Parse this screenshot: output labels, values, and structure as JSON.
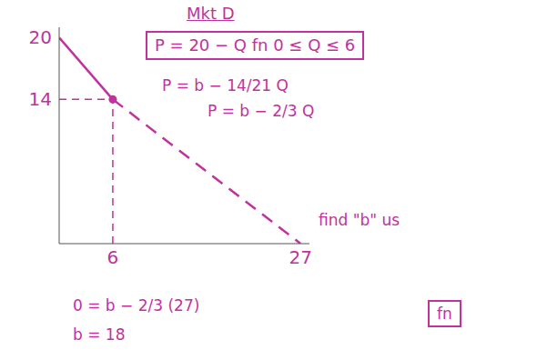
{
  "chart_data": {
    "type": "line",
    "xlim": [
      0,
      28
    ],
    "xticks": [
      6,
      27
    ],
    "ylim": [
      0,
      21
    ],
    "yticks": [
      14,
      20
    ],
    "grid": false,
    "tick_labels": true,
    "color": "#c0329e",
    "series": [
      {
        "type": "line",
        "line_style": "solid",
        "x": [
          0,
          6
        ],
        "values": [
          20,
          14
        ]
      },
      {
        "type": "line",
        "line_style": "dashed",
        "x": [
          6,
          27
        ],
        "values": [
          14,
          0
        ]
      },
      {
        "type": "scatter",
        "marker": "circle",
        "x": [
          6
        ],
        "values": [
          14
        ]
      }
    ],
    "annotations": [
      "Mkt D",
      "P = 20 − Q fn 0 ≤ Q ≤ 6",
      "P = b − 14/21 Q",
      "P = b − 2/3 Q",
      "find \"b\" us",
      "0 = b − 2/3 (27)",
      "b = 18",
      "fn"
    ]
  }
}
